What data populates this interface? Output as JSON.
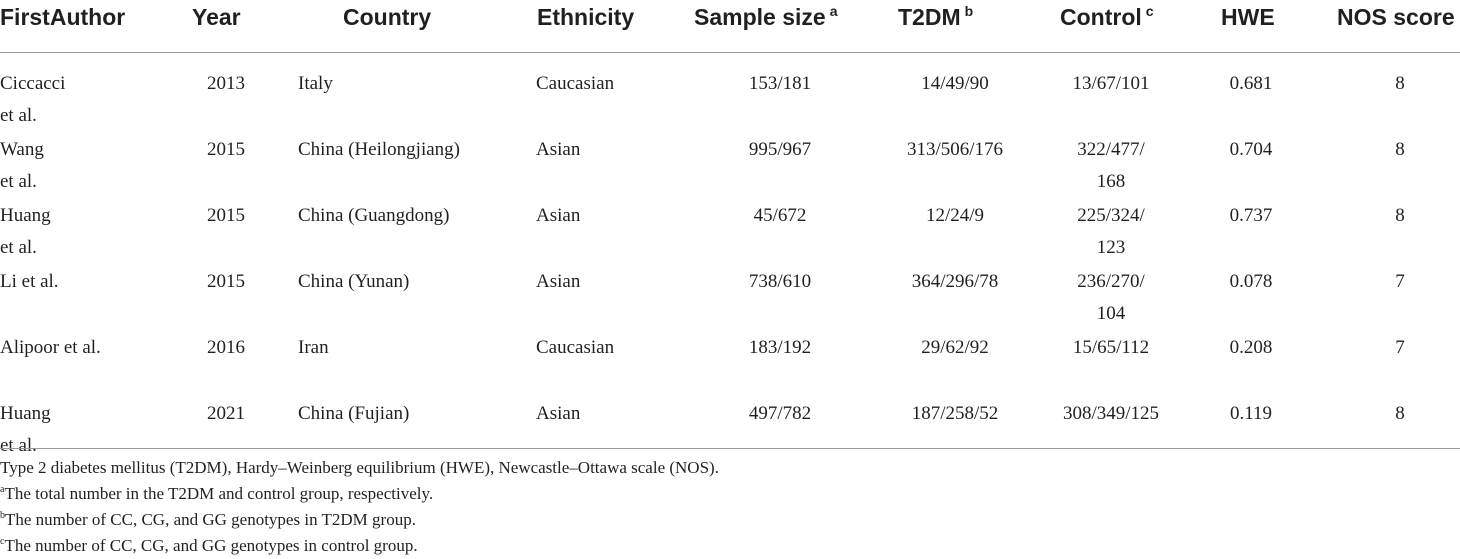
{
  "table": {
    "headers": [
      {
        "key": "first_author",
        "label": "FirstAuthor",
        "sup": ""
      },
      {
        "key": "year",
        "label": "Year",
        "sup": ""
      },
      {
        "key": "country",
        "label": "Country",
        "sup": ""
      },
      {
        "key": "ethnicity",
        "label": "Ethnicity",
        "sup": ""
      },
      {
        "key": "sample_size",
        "label": "Sample size",
        "sup": "a"
      },
      {
        "key": "t2dm",
        "label": "T2DM",
        "sup": "b"
      },
      {
        "key": "control",
        "label": "Control",
        "sup": "c"
      },
      {
        "key": "hwe",
        "label": "HWE",
        "sup": ""
      },
      {
        "key": "nos",
        "label": "NOS score",
        "sup": ""
      }
    ],
    "rows": [
      {
        "first_author": [
          "Ciccacci",
          "et al."
        ],
        "year": "2013",
        "country": "Italy",
        "ethnicity": "Caucasian",
        "sample_size": "153/181",
        "t2dm": "14/49/90",
        "control": [
          "13/67/101"
        ],
        "hwe": "0.681",
        "nos": "8"
      },
      {
        "first_author": [
          "Wang",
          "et al."
        ],
        "year": "2015",
        "country": "China (Heilongjiang)",
        "ethnicity": "Asian",
        "sample_size": "995/967",
        "t2dm": "313/506/176",
        "control": [
          "322/477/",
          "168"
        ],
        "hwe": "0.704",
        "nos": "8"
      },
      {
        "first_author": [
          "Huang",
          "et al."
        ],
        "year": "2015",
        "country": "China (Guangdong)",
        "ethnicity": "Asian",
        "sample_size": "45/672",
        "t2dm": "12/24/9",
        "control": [
          "225/324/",
          "123"
        ],
        "hwe": "0.737",
        "nos": "8"
      },
      {
        "first_author": [
          "Li et al."
        ],
        "year": "2015",
        "country": "China (Yunan)",
        "ethnicity": "Asian",
        "sample_size": "738/610",
        "t2dm": "364/296/78",
        "control": [
          "236/270/",
          "104"
        ],
        "hwe": "0.078",
        "nos": "7"
      },
      {
        "first_author": [
          "Alipoor et al."
        ],
        "year": "2016",
        "country": "Iran",
        "ethnicity": "Caucasian",
        "sample_size": "183/192",
        "t2dm": "29/62/92",
        "control": [
          "15/65/112"
        ],
        "hwe": "0.208",
        "nos": "7"
      },
      {
        "first_author": [
          "Huang",
          "et al."
        ],
        "year": "2021",
        "country": "China (Fujian)",
        "ethnicity": "Asian",
        "sample_size": "497/782",
        "t2dm": "187/258/52",
        "control": [
          "308/349/125"
        ],
        "hwe": "0.119",
        "nos": "8"
      }
    ]
  },
  "footnotes": {
    "abbrev": {
      "sup": "",
      "text": "Type 2 diabetes mellitus (T2DM), Hardy–Weinberg equilibrium (HWE), Newcastle–Ottawa scale (NOS)."
    },
    "a": {
      "sup": "a",
      "text": "The total number in the T2DM and control group, respectively."
    },
    "b": {
      "sup": "b",
      "text": "The number of CC, CG, and GG genotypes in T2DM group."
    },
    "c": {
      "sup": "c",
      "text": "The number of CC, CG, and GG genotypes in control group."
    }
  }
}
